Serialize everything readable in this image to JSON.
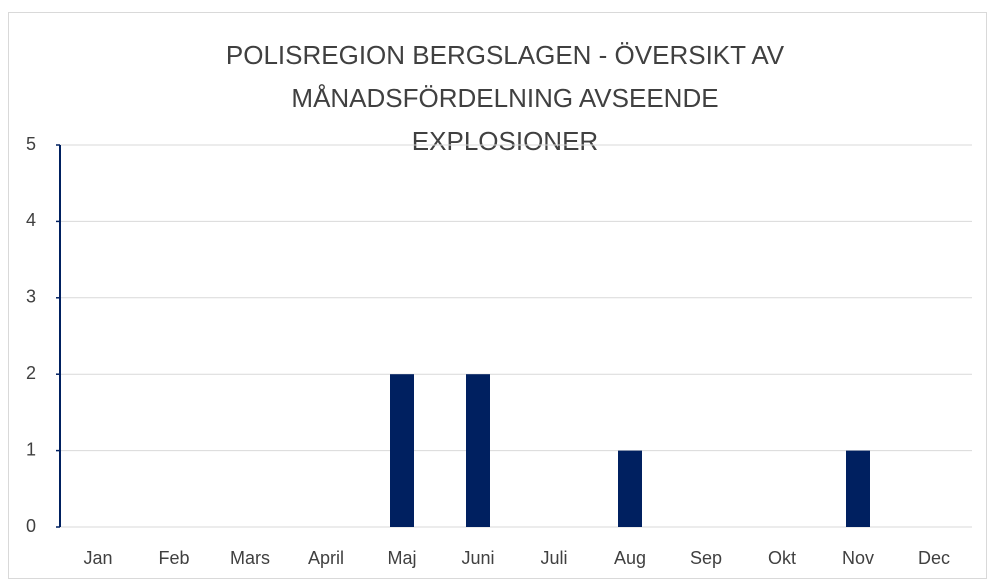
{
  "chart_data": {
    "type": "bar",
    "title": "POLISREGION BERGSLAGEN - ÖVERSIKT AV MÅNADSFÖRDELNING AVSEENDE EXPLOSIONER",
    "categories": [
      "Jan",
      "Feb",
      "Mars",
      "April",
      "Maj",
      "Juni",
      "Juli",
      "Aug",
      "Sep",
      "Okt",
      "Nov",
      "Dec"
    ],
    "values": [
      0,
      0,
      0,
      0,
      2,
      2,
      0,
      1,
      0,
      0,
      1,
      0
    ],
    "color": "#002060",
    "ylim": [
      0,
      5
    ],
    "yticks": [
      0,
      1,
      2,
      3,
      4,
      5
    ],
    "grid": true
  }
}
